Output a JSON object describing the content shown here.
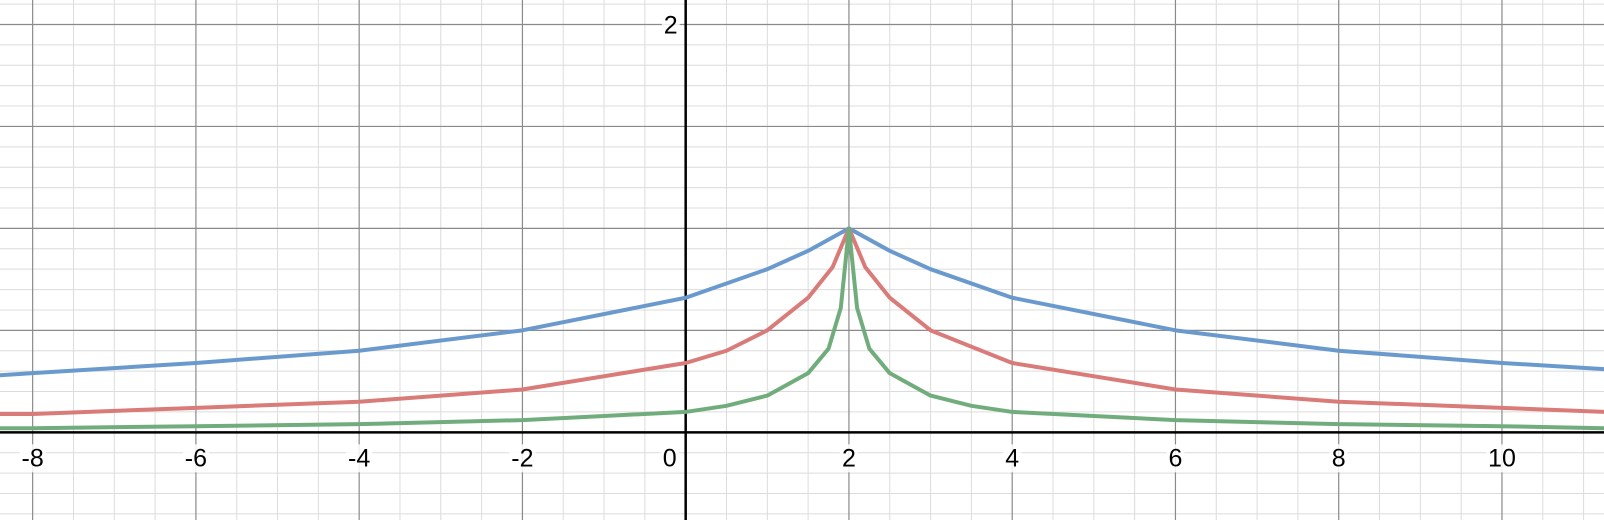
{
  "chart_data": {
    "type": "line",
    "title": "",
    "xlabel": "",
    "ylabel": "",
    "xlim": [
      -8.4,
      11.25
    ],
    "ylim": [
      -0.43,
      2.12
    ],
    "grid": true,
    "minor_grid": true,
    "x_ticks": [
      {
        "value": -8,
        "label": "-8"
      },
      {
        "value": -6,
        "label": "-6"
      },
      {
        "value": -4,
        "label": "-4"
      },
      {
        "value": -2,
        "label": "-2"
      },
      {
        "value": 0,
        "label": "0"
      },
      {
        "value": 2,
        "label": "2"
      },
      {
        "value": 4,
        "label": "4"
      },
      {
        "value": 6,
        "label": "6"
      },
      {
        "value": 8,
        "label": "8"
      },
      {
        "value": 10,
        "label": "10"
      }
    ],
    "y_ticks": [
      {
        "value": 2,
        "label": "2"
      }
    ],
    "series": [
      {
        "color": "#6a9acd",
        "x": [
          -8.4,
          -8,
          -6,
          -4,
          -2,
          0,
          1,
          1.5,
          2,
          2.5,
          3,
          4,
          6,
          8,
          10,
          11.25
        ],
        "y": [
          0.28,
          0.29,
          0.34,
          0.4,
          0.5,
          0.66,
          0.8,
          0.89,
          1.0,
          0.89,
          0.8,
          0.66,
          0.5,
          0.4,
          0.34,
          0.31
        ]
      },
      {
        "color": "#d97b78",
        "x": [
          -8.4,
          -8,
          -6,
          -4,
          -2,
          0,
          0.5,
          1,
          1.5,
          1.8,
          2,
          2.2,
          2.5,
          3,
          3.5,
          4,
          6,
          8,
          10,
          11.25
        ],
        "y": [
          0.09,
          0.09,
          0.12,
          0.15,
          0.21,
          0.34,
          0.4,
          0.5,
          0.66,
          0.81,
          1.0,
          0.81,
          0.66,
          0.5,
          0.42,
          0.34,
          0.21,
          0.15,
          0.12,
          0.1
        ]
      },
      {
        "color": "#71ad7c",
        "x": [
          -8.4,
          -8,
          -6,
          -4,
          -2,
          0,
          0.5,
          1,
          1.5,
          1.75,
          1.9,
          2,
          2.1,
          2.25,
          2.5,
          3,
          3.5,
          4,
          6,
          8,
          10,
          11.25
        ],
        "y": [
          0.02,
          0.02,
          0.03,
          0.04,
          0.06,
          0.1,
          0.13,
          0.18,
          0.29,
          0.41,
          0.61,
          1.0,
          0.61,
          0.41,
          0.29,
          0.18,
          0.13,
          0.1,
          0.06,
          0.04,
          0.03,
          0.02
        ]
      }
    ]
  }
}
